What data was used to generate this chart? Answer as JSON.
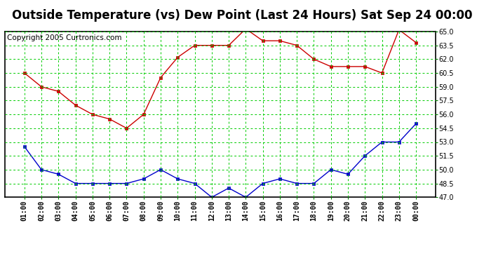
{
  "title": "Outside Temperature (vs) Dew Point (Last 24 Hours) Sat Sep 24 00:00",
  "copyright": "Copyright 2005 Curtronics.com",
  "x_labels": [
    "01:00",
    "02:00",
    "03:00",
    "04:00",
    "05:00",
    "06:00",
    "07:00",
    "08:00",
    "09:00",
    "10:00",
    "11:00",
    "12:00",
    "13:00",
    "14:00",
    "15:00",
    "16:00",
    "17:00",
    "18:00",
    "19:00",
    "20:00",
    "21:00",
    "22:00",
    "23:00",
    "00:00"
  ],
  "temp_red": [
    60.5,
    59.0,
    58.5,
    57.0,
    56.0,
    55.5,
    54.5,
    56.0,
    60.0,
    62.2,
    63.5,
    63.5,
    63.5,
    65.3,
    64.0,
    64.0,
    63.5,
    62.0,
    61.2,
    61.2,
    61.2,
    60.5,
    65.2,
    63.8
  ],
  "dew_blue": [
    52.5,
    50.0,
    49.5,
    48.5,
    48.5,
    48.5,
    48.5,
    49.0,
    50.0,
    49.0,
    48.5,
    47.0,
    48.0,
    47.0,
    48.5,
    49.0,
    48.5,
    48.5,
    50.0,
    49.5,
    51.5,
    53.0,
    53.0,
    55.0
  ],
  "ylim": [
    47.0,
    65.0
  ],
  "yticks": [
    47.0,
    48.5,
    50.0,
    51.5,
    53.0,
    54.5,
    56.0,
    57.5,
    59.0,
    60.5,
    62.0,
    63.5,
    65.0
  ],
  "bg_color": "#ffffff",
  "plot_bg": "#ffffff",
  "grid_color": "#00cc00",
  "red_color": "#cc0000",
  "blue_color": "#0000cc",
  "border_color": "#000000",
  "title_fontsize": 12,
  "copyright_fontsize": 7.5
}
